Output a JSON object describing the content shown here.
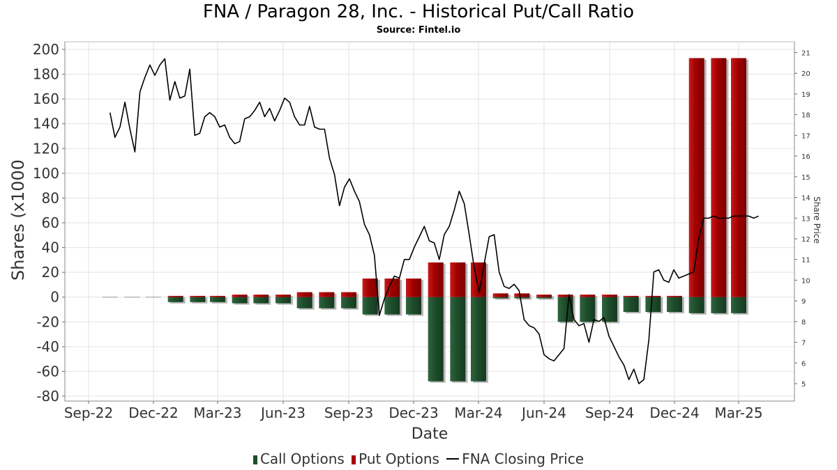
{
  "chart_data": {
    "type": "bar",
    "title": "FNA / Paragon 28, Inc. - Historical Put/Call Ratio",
    "subtitle": "Source: Fintel.io",
    "xlabel": "Date",
    "ylabel": "Shares (x1000",
    "y2label": "Share Price",
    "ylim": [
      -80,
      200
    ],
    "y_ticks": [
      200,
      180,
      160,
      140,
      120,
      100,
      80,
      60,
      40,
      20,
      0,
      -20,
      -40,
      -60,
      -80
    ],
    "y2lim": [
      4.5,
      21.5
    ],
    "y2_ticks": [
      21,
      20,
      19,
      18,
      17,
      16,
      15,
      14,
      13,
      12,
      11,
      10,
      9,
      8,
      7,
      6,
      5
    ],
    "x_tick_labels": [
      "Sep-22",
      "Dec-22",
      "Mar-23",
      "Jun-23",
      "Sep-23",
      "Dec-23",
      "Mar-24",
      "Jun-24",
      "Sep-24",
      "Dec-24",
      "Mar-25"
    ],
    "grid": true,
    "legend_position": "bottom",
    "colors": {
      "call": "#1e4d2b",
      "put": "#aa0000",
      "price": "#000000"
    },
    "series": [
      {
        "name": "Call Options",
        "x": [
          "2022-10-01",
          "2022-11-01",
          "2022-12-01",
          "2023-01-01",
          "2023-02-01",
          "2023-03-01",
          "2023-04-01",
          "2023-05-01",
          "2023-06-01",
          "2023-07-01",
          "2023-08-01",
          "2023-09-01",
          "2023-10-01",
          "2023-11-01",
          "2023-12-01",
          "2024-01-01",
          "2024-02-01",
          "2024-03-01",
          "2024-04-01",
          "2024-05-01",
          "2024-06-01",
          "2024-07-01",
          "2024-08-01",
          "2024-09-01",
          "2024-10-01",
          "2024-11-01",
          "2024-12-01",
          "2025-01-01",
          "2025-02-01",
          "2025-03-01"
        ],
        "values": [
          0,
          0,
          0,
          -4,
          -4,
          -4,
          -5,
          -5,
          -5,
          -9,
          -9,
          -9,
          -14,
          -14,
          -14,
          -68,
          -68,
          -68,
          -1,
          -1,
          -1,
          -20,
          -20,
          -20,
          -12,
          -12,
          -12,
          -13,
          -13,
          -13
        ]
      },
      {
        "name": "Put Options",
        "x": [
          "2022-10-01",
          "2022-11-01",
          "2022-12-01",
          "2023-01-01",
          "2023-02-01",
          "2023-03-01",
          "2023-04-01",
          "2023-05-01",
          "2023-06-01",
          "2023-07-01",
          "2023-08-01",
          "2023-09-01",
          "2023-10-01",
          "2023-11-01",
          "2023-12-01",
          "2024-01-01",
          "2024-02-01",
          "2024-03-01",
          "2024-04-01",
          "2024-05-01",
          "2024-06-01",
          "2024-07-01",
          "2024-08-01",
          "2024-09-01",
          "2024-10-01",
          "2024-11-01",
          "2024-12-01",
          "2025-01-01",
          "2025-02-01",
          "2025-03-01"
        ],
        "values": [
          0,
          0,
          0,
          1,
          1,
          1,
          2,
          2,
          2,
          4,
          4,
          4,
          15,
          15,
          15,
          28,
          28,
          28,
          3,
          3,
          2,
          2,
          2,
          2,
          1,
          1,
          1,
          193,
          193,
          193
        ]
      },
      {
        "name": "FNA Closing Price",
        "axis": "right",
        "x": [
          "2022-10-01",
          "2022-10-08",
          "2022-10-15",
          "2022-10-22",
          "2022-10-29",
          "2022-11-05",
          "2022-11-12",
          "2022-11-19",
          "2022-11-26",
          "2022-12-03",
          "2022-12-10",
          "2022-12-17",
          "2022-12-24",
          "2022-12-31",
          "2023-01-07",
          "2023-01-14",
          "2023-01-21",
          "2023-01-28",
          "2023-02-04",
          "2023-02-11",
          "2023-02-18",
          "2023-02-25",
          "2023-03-04",
          "2023-03-11",
          "2023-03-18",
          "2023-03-25",
          "2023-04-01",
          "2023-04-08",
          "2023-04-15",
          "2023-04-22",
          "2023-04-29",
          "2023-05-06",
          "2023-05-13",
          "2023-05-20",
          "2023-05-27",
          "2023-06-03",
          "2023-06-10",
          "2023-06-17",
          "2023-06-24",
          "2023-07-01",
          "2023-07-08",
          "2023-07-15",
          "2023-07-22",
          "2023-07-29",
          "2023-08-05",
          "2023-08-12",
          "2023-08-19",
          "2023-08-26",
          "2023-09-02",
          "2023-09-09",
          "2023-09-16",
          "2023-09-23",
          "2023-09-30",
          "2023-10-07",
          "2023-10-14",
          "2023-10-21",
          "2023-10-28",
          "2023-11-04",
          "2023-11-11",
          "2023-11-18",
          "2023-11-25",
          "2023-12-02",
          "2023-12-09",
          "2023-12-16",
          "2023-12-23",
          "2023-12-30",
          "2024-01-06",
          "2024-01-13",
          "2024-01-20",
          "2024-01-27",
          "2024-02-03",
          "2024-02-10",
          "2024-02-17",
          "2024-02-24",
          "2024-03-02",
          "2024-03-09",
          "2024-03-16",
          "2024-03-23",
          "2024-03-30",
          "2024-04-06",
          "2024-04-13",
          "2024-04-20",
          "2024-04-27",
          "2024-05-04",
          "2024-05-11",
          "2024-05-18",
          "2024-05-25",
          "2024-06-01",
          "2024-06-08",
          "2024-06-15",
          "2024-06-22",
          "2024-06-29",
          "2024-07-06",
          "2024-07-13",
          "2024-07-20",
          "2024-07-27",
          "2024-08-03",
          "2024-08-10",
          "2024-08-17",
          "2024-08-24",
          "2024-08-31",
          "2024-09-07",
          "2024-09-14",
          "2024-09-21",
          "2024-09-28",
          "2024-10-05",
          "2024-10-12",
          "2024-10-19",
          "2024-10-26",
          "2024-11-02",
          "2024-11-09",
          "2024-11-16",
          "2024-11-23",
          "2024-11-30",
          "2024-12-07",
          "2024-12-14",
          "2024-12-21",
          "2024-12-28",
          "2025-01-04",
          "2025-01-11",
          "2025-01-18",
          "2025-01-25",
          "2025-02-01",
          "2025-02-08",
          "2025-02-15",
          "2025-02-22",
          "2025-03-01",
          "2025-03-08",
          "2025-03-15",
          "2025-03-22",
          "2025-03-29"
        ],
        "values": [
          18.1,
          16.9,
          17.4,
          18.6,
          17.3,
          16.2,
          19.1,
          19.8,
          20.4,
          19.9,
          20.4,
          20.7,
          18.7,
          19.6,
          18.8,
          18.9,
          20.2,
          17.0,
          17.1,
          17.9,
          18.1,
          17.9,
          17.4,
          17.5,
          16.9,
          16.6,
          16.7,
          17.8,
          17.9,
          18.2,
          18.6,
          17.9,
          18.3,
          17.7,
          18.2,
          18.8,
          18.6,
          17.9,
          17.5,
          17.5,
          18.4,
          17.4,
          17.3,
          17.3,
          15.9,
          15.1,
          13.6,
          14.5,
          14.9,
          14.3,
          13.8,
          12.7,
          12.2,
          11.2,
          8.3,
          9.1,
          9.7,
          10.2,
          10.1,
          11.0,
          11.0,
          11.6,
          12.1,
          12.6,
          11.9,
          11.8,
          11.0,
          12.2,
          12.6,
          13.4,
          14.3,
          13.7,
          12.2,
          10.6,
          9.4,
          10.8,
          12.1,
          12.2,
          10.4,
          9.7,
          9.6,
          9.8,
          9.5,
          8.1,
          7.8,
          7.7,
          7.4,
          6.4,
          6.2,
          6.1,
          6.4,
          6.7,
          9.3,
          8.1,
          7.8,
          7.9,
          7.0,
          8.1,
          8.0,
          8.2,
          7.3,
          6.8,
          6.3,
          5.9,
          5.2,
          5.7,
          5.0,
          5.2,
          7.1,
          10.4,
          10.5,
          10.0,
          9.9,
          10.5,
          10.1,
          10.2,
          10.3,
          10.4,
          12.0,
          13.0,
          13.0,
          13.1,
          13.0,
          13.0,
          13.0,
          13.1,
          13.1,
          13.1,
          13.1,
          13.0,
          13.1
        ]
      }
    ]
  },
  "legend": {
    "call_label": "Call Options",
    "put_label": "Put Options",
    "price_label": "FNA Closing Price"
  }
}
